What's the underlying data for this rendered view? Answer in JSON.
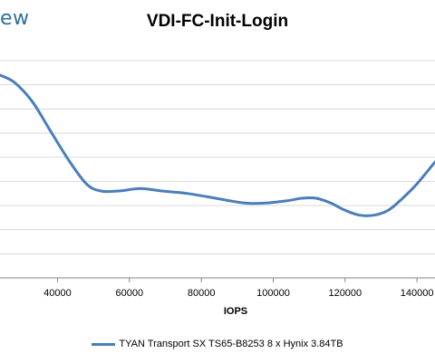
{
  "logo": {
    "text": "ew"
  },
  "chart_data": {
    "type": "line",
    "title": "VDI-FC-Init-Login",
    "xlabel": "IOPS",
    "ylabel": "",
    "x_ticks": [
      40000,
      60000,
      80000,
      100000,
      120000,
      140000
    ],
    "x_tick_labels": [
      "40000",
      "60000",
      "80000",
      "100000",
      "120000",
      "140000"
    ],
    "y_ticks": [
      0,
      1,
      2,
      3,
      4,
      5,
      6,
      7,
      8,
      9
    ],
    "xlim": [
      24000,
      145000
    ],
    "ylim": [
      0,
      9
    ],
    "grid": "horizontal",
    "legend_position": "bottom",
    "series": [
      {
        "name": "TYAN Transport SX TS65-B8253 8 x Hynix 3.84TB",
        "color": "#4a7ebb",
        "x": [
          24000,
          28000,
          33000,
          38000,
          43000,
          48000,
          52000,
          57000,
          63000,
          69000,
          76000,
          84000,
          92000,
          98000,
          104000,
          108000,
          112000,
          116000,
          120000,
          124000,
          128000,
          132000,
          136000,
          140000,
          145000
        ],
        "y": [
          8.4,
          8.1,
          7.3,
          6.1,
          4.9,
          3.9,
          3.6,
          3.6,
          3.7,
          3.6,
          3.5,
          3.3,
          3.1,
          3.1,
          3.2,
          3.3,
          3.3,
          3.1,
          2.8,
          2.6,
          2.6,
          2.8,
          3.3,
          3.9,
          4.8
        ]
      }
    ]
  }
}
